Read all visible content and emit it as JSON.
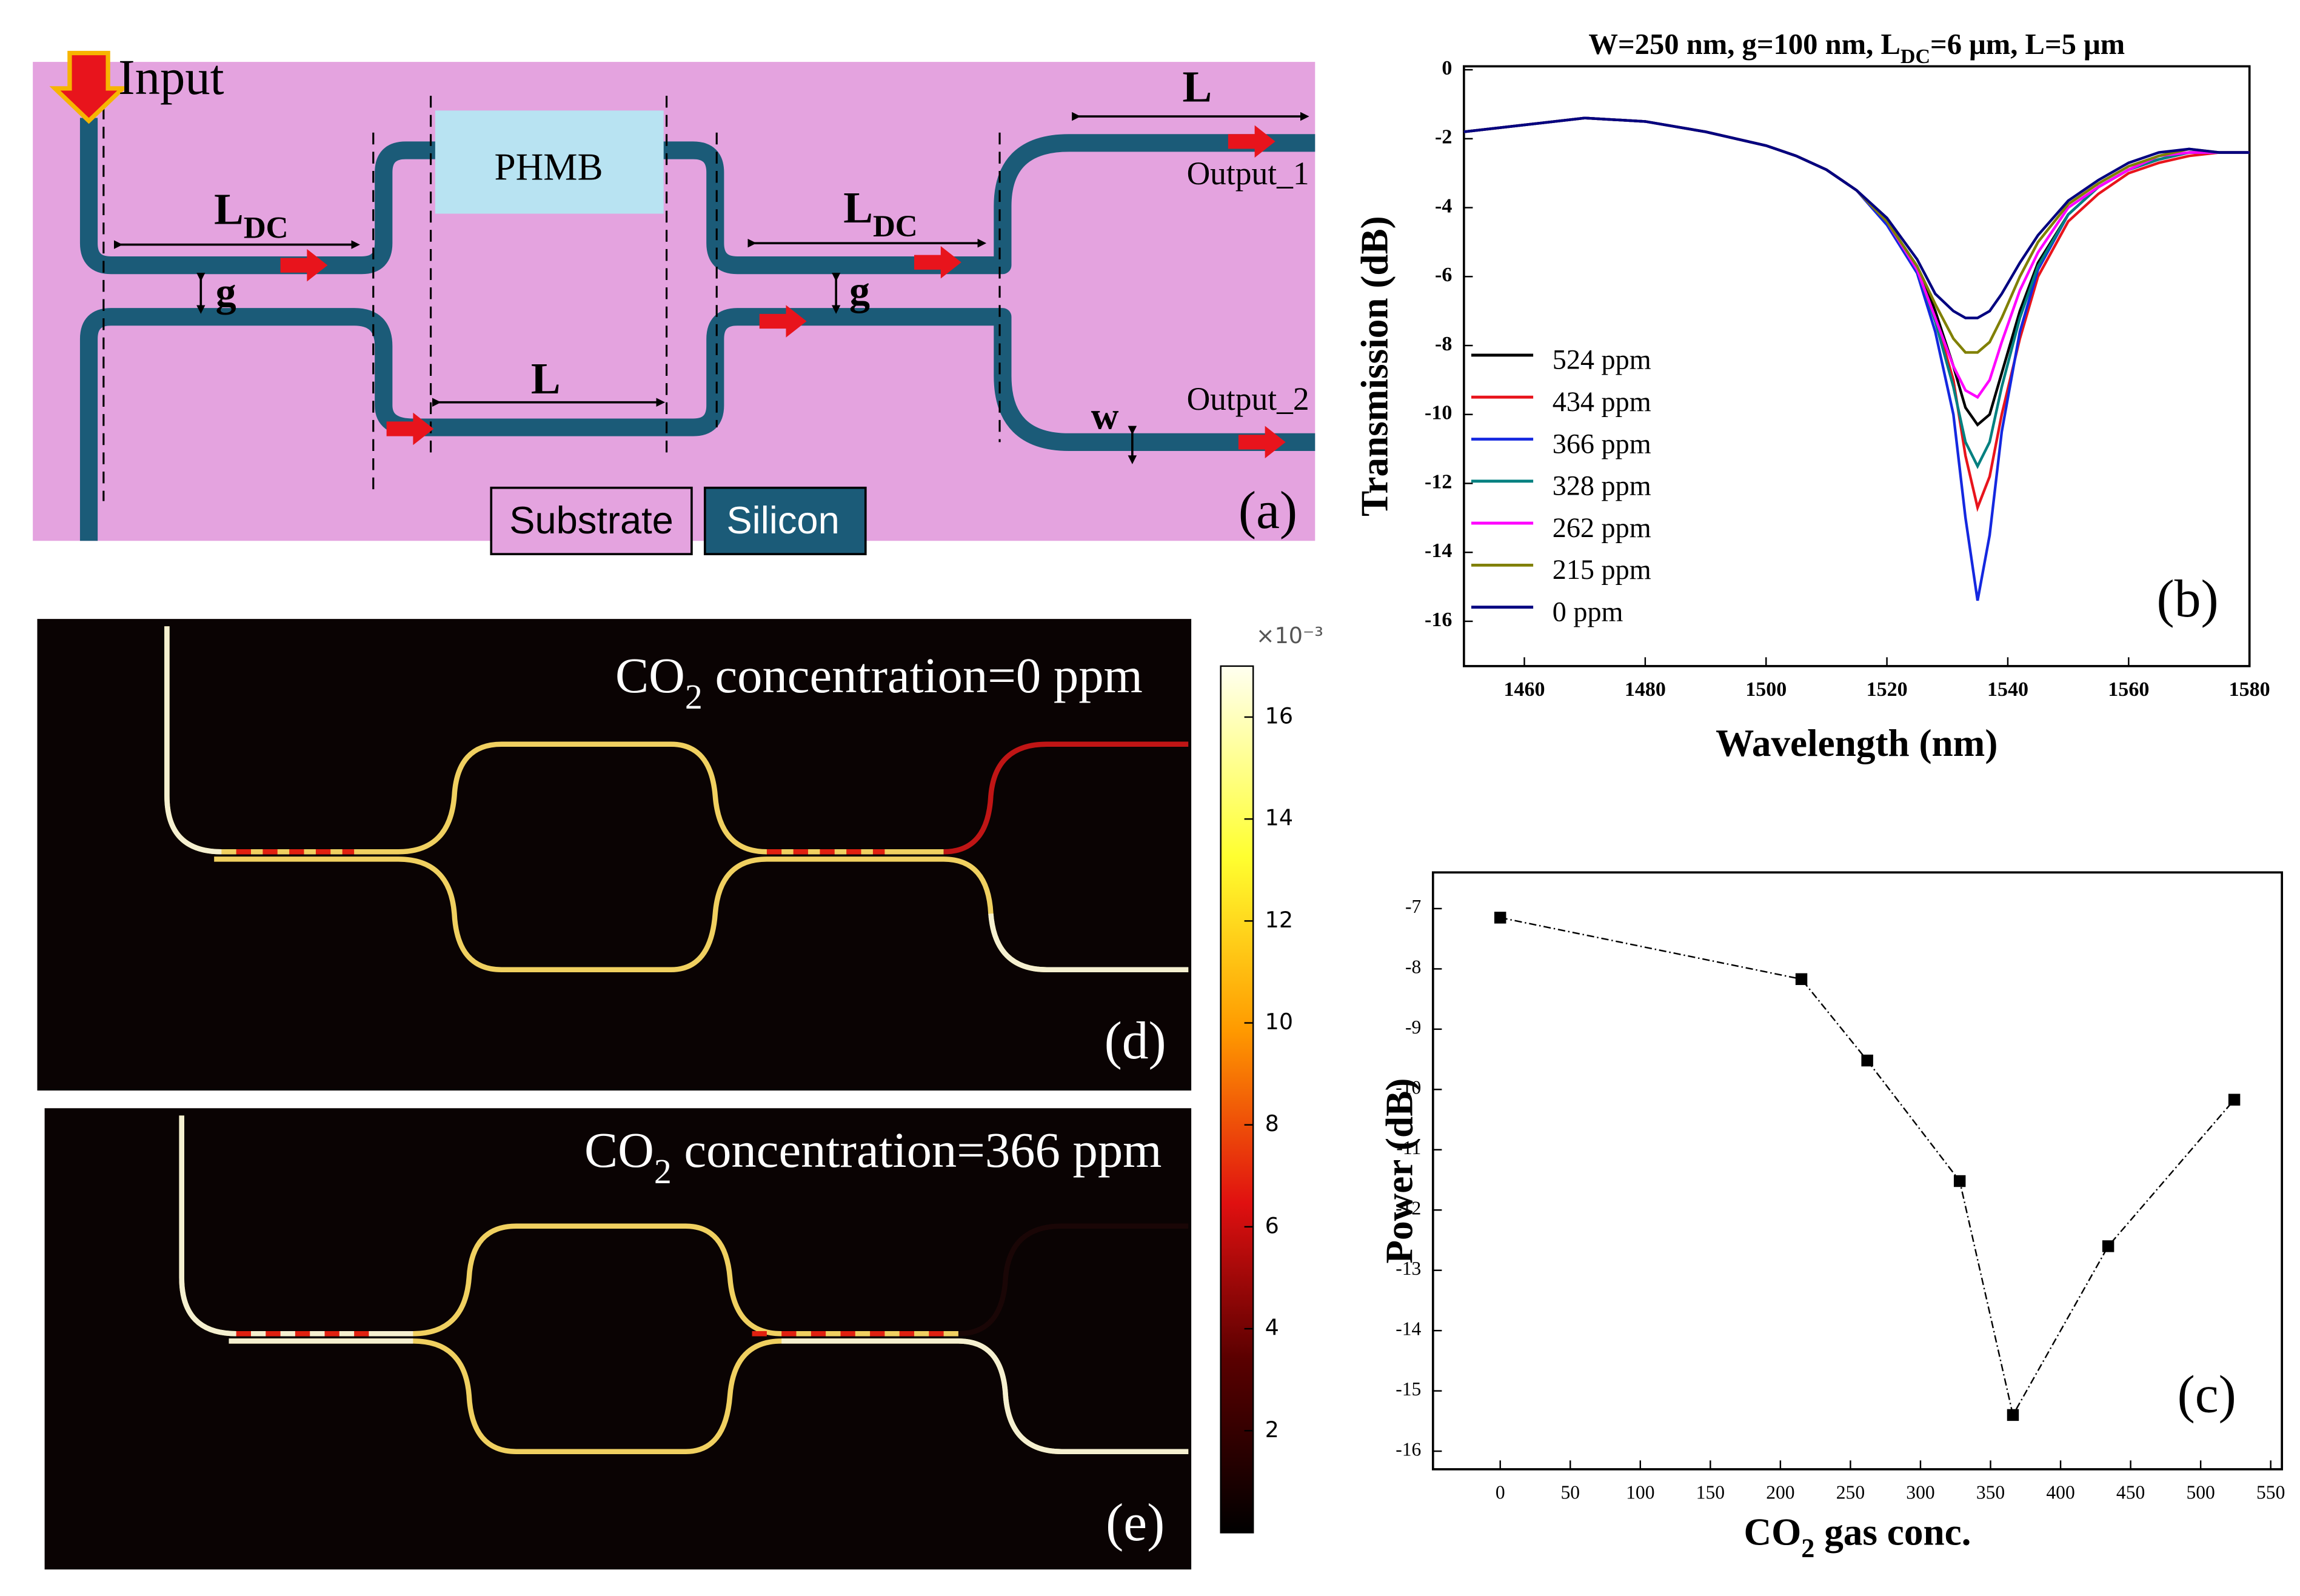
{
  "diagram": {
    "input": "Input",
    "ldc_left": [
      "L",
      "DC"
    ],
    "g_left": "g",
    "phmb": "PHMB",
    "l_middle": "L",
    "ldc_right": [
      "L",
      "DC"
    ],
    "g_right": "g",
    "l_top": "L",
    "output_1": "Output_1",
    "output_2": "Output_2",
    "w": "w",
    "legend": [
      "Substrate",
      "Silicon"
    ],
    "panel_label": "(a)"
  },
  "chart_data": [
    {
      "type": "line",
      "title": [
        "W=250 nm, g=100 nm, L",
        "DC",
        "=6 μm, L=5 μm"
      ],
      "xlabel": "Wavelength (nm)",
      "ylabel": "Transmission (dB)",
      "panel_label": "(b)",
      "legend": "lower left",
      "x": [
        1450,
        1460,
        1470,
        1480,
        1490,
        1500,
        1505,
        1510,
        1515,
        1520,
        1525,
        1528,
        1531,
        1533,
        1535,
        1537,
        1539,
        1542,
        1545,
        1550,
        1555,
        1560,
        1565,
        1570,
        1575,
        1580
      ],
      "xlim": [
        1450,
        1580
      ],
      "xticks": [
        1460,
        1480,
        1500,
        1520,
        1540,
        1560,
        1580
      ],
      "ylim": [
        -17.3,
        0.1
      ],
      "yticks": [
        0,
        -2,
        -4,
        -6,
        -8,
        -10,
        -12,
        -14,
        -16
      ],
      "series": [
        {
          "name": "524 ppm",
          "color": "#000000",
          "values": [
            -1.8,
            -1.6,
            -1.4,
            -1.5,
            -1.8,
            -2.2,
            -2.5,
            -2.9,
            -3.5,
            -4.4,
            -5.7,
            -7.0,
            -8.6,
            -9.8,
            -10.3,
            -10.0,
            -8.8,
            -7.0,
            -5.6,
            -4.2,
            -3.4,
            -2.9,
            -2.6,
            -2.4,
            -2.4,
            -2.4
          ]
        },
        {
          "name": "434 ppm",
          "color": "#e8141c",
          "values": [
            -1.8,
            -1.6,
            -1.4,
            -1.5,
            -1.8,
            -2.2,
            -2.5,
            -2.9,
            -3.5,
            -4.4,
            -5.8,
            -7.2,
            -9.0,
            -11.2,
            -12.7,
            -11.8,
            -10.0,
            -7.8,
            -6.0,
            -4.4,
            -3.6,
            -3.0,
            -2.7,
            -2.5,
            -2.4,
            -2.4
          ]
        },
        {
          "name": "366 ppm",
          "color": "#1428e0",
          "values": [
            -1.8,
            -1.6,
            -1.4,
            -1.5,
            -1.8,
            -2.2,
            -2.5,
            -2.9,
            -3.5,
            -4.5,
            -5.9,
            -7.6,
            -10.0,
            -13.0,
            -15.4,
            -13.5,
            -10.5,
            -7.6,
            -5.8,
            -4.2,
            -3.4,
            -2.9,
            -2.6,
            -2.4,
            -2.4,
            -2.4
          ]
        },
        {
          "name": "328 ppm",
          "color": "#008080",
          "values": [
            -1.8,
            -1.6,
            -1.4,
            -1.5,
            -1.8,
            -2.2,
            -2.5,
            -2.9,
            -3.5,
            -4.4,
            -5.8,
            -7.3,
            -9.2,
            -10.8,
            -11.5,
            -10.8,
            -9.2,
            -7.2,
            -5.7,
            -4.2,
            -3.4,
            -2.9,
            -2.6,
            -2.4,
            -2.4,
            -2.4
          ]
        },
        {
          "name": "262 ppm",
          "color": "#ff00ff",
          "values": [
            -1.8,
            -1.6,
            -1.4,
            -1.5,
            -1.8,
            -2.2,
            -2.5,
            -2.9,
            -3.5,
            -4.4,
            -5.8,
            -7.2,
            -8.6,
            -9.3,
            -9.5,
            -9.0,
            -7.9,
            -6.4,
            -5.3,
            -4.0,
            -3.4,
            -2.9,
            -2.5,
            -2.4,
            -2.4,
            -2.4
          ]
        },
        {
          "name": "215 ppm",
          "color": "#808000",
          "values": [
            -1.8,
            -1.6,
            -1.4,
            -1.5,
            -1.8,
            -2.2,
            -2.5,
            -2.9,
            -3.5,
            -4.4,
            -5.7,
            -6.8,
            -7.8,
            -8.2,
            -8.2,
            -7.9,
            -7.2,
            -6.0,
            -5.0,
            -3.9,
            -3.3,
            -2.8,
            -2.5,
            -2.3,
            -2.4,
            -2.4
          ]
        },
        {
          "name": "0 ppm",
          "color": "#000080",
          "values": [
            -1.8,
            -1.6,
            -1.4,
            -1.5,
            -1.8,
            -2.2,
            -2.5,
            -2.9,
            -3.5,
            -4.3,
            -5.5,
            -6.5,
            -7.0,
            -7.2,
            -7.2,
            -7.0,
            -6.5,
            -5.6,
            -4.8,
            -3.8,
            -3.2,
            -2.7,
            -2.4,
            -2.3,
            -2.4,
            -2.4
          ]
        }
      ]
    },
    {
      "type": "line",
      "xlabel": [
        "CO",
        "2",
        " gas conc."
      ],
      "ylabel": "Power (dB)",
      "panel_label": "(c)",
      "markers": true,
      "line_style": "dashdot",
      "color": "#000000",
      "x": [
        0,
        215,
        262,
        328,
        366,
        434,
        524
      ],
      "values": [
        -7.15,
        -8.17,
        -9.52,
        -11.52,
        -15.4,
        -12.6,
        -10.17
      ],
      "xlim": [
        -48,
        558
      ],
      "xticks": [
        0,
        50,
        100,
        150,
        200,
        250,
        300,
        350,
        400,
        450,
        500,
        550
      ],
      "ylim": [
        -16.3,
        -6.4
      ],
      "yticks": [
        -7,
        -8,
        -9,
        -10,
        -11,
        -12,
        -13,
        -14,
        -15,
        -16
      ]
    }
  ],
  "field_maps": [
    {
      "label": [
        "CO",
        "2",
        " concentration=0 ppm"
      ],
      "panel_label": "(d)"
    },
    {
      "label": [
        "CO",
        "2",
        " concentration=366 ppm"
      ],
      "panel_label": "(e)"
    }
  ],
  "colorbar": {
    "lim": [
      0,
      17
    ],
    "ticks": [
      2,
      4,
      6,
      8,
      10,
      12,
      14,
      16
    ],
    "multiplier": "×10⁻³"
  }
}
